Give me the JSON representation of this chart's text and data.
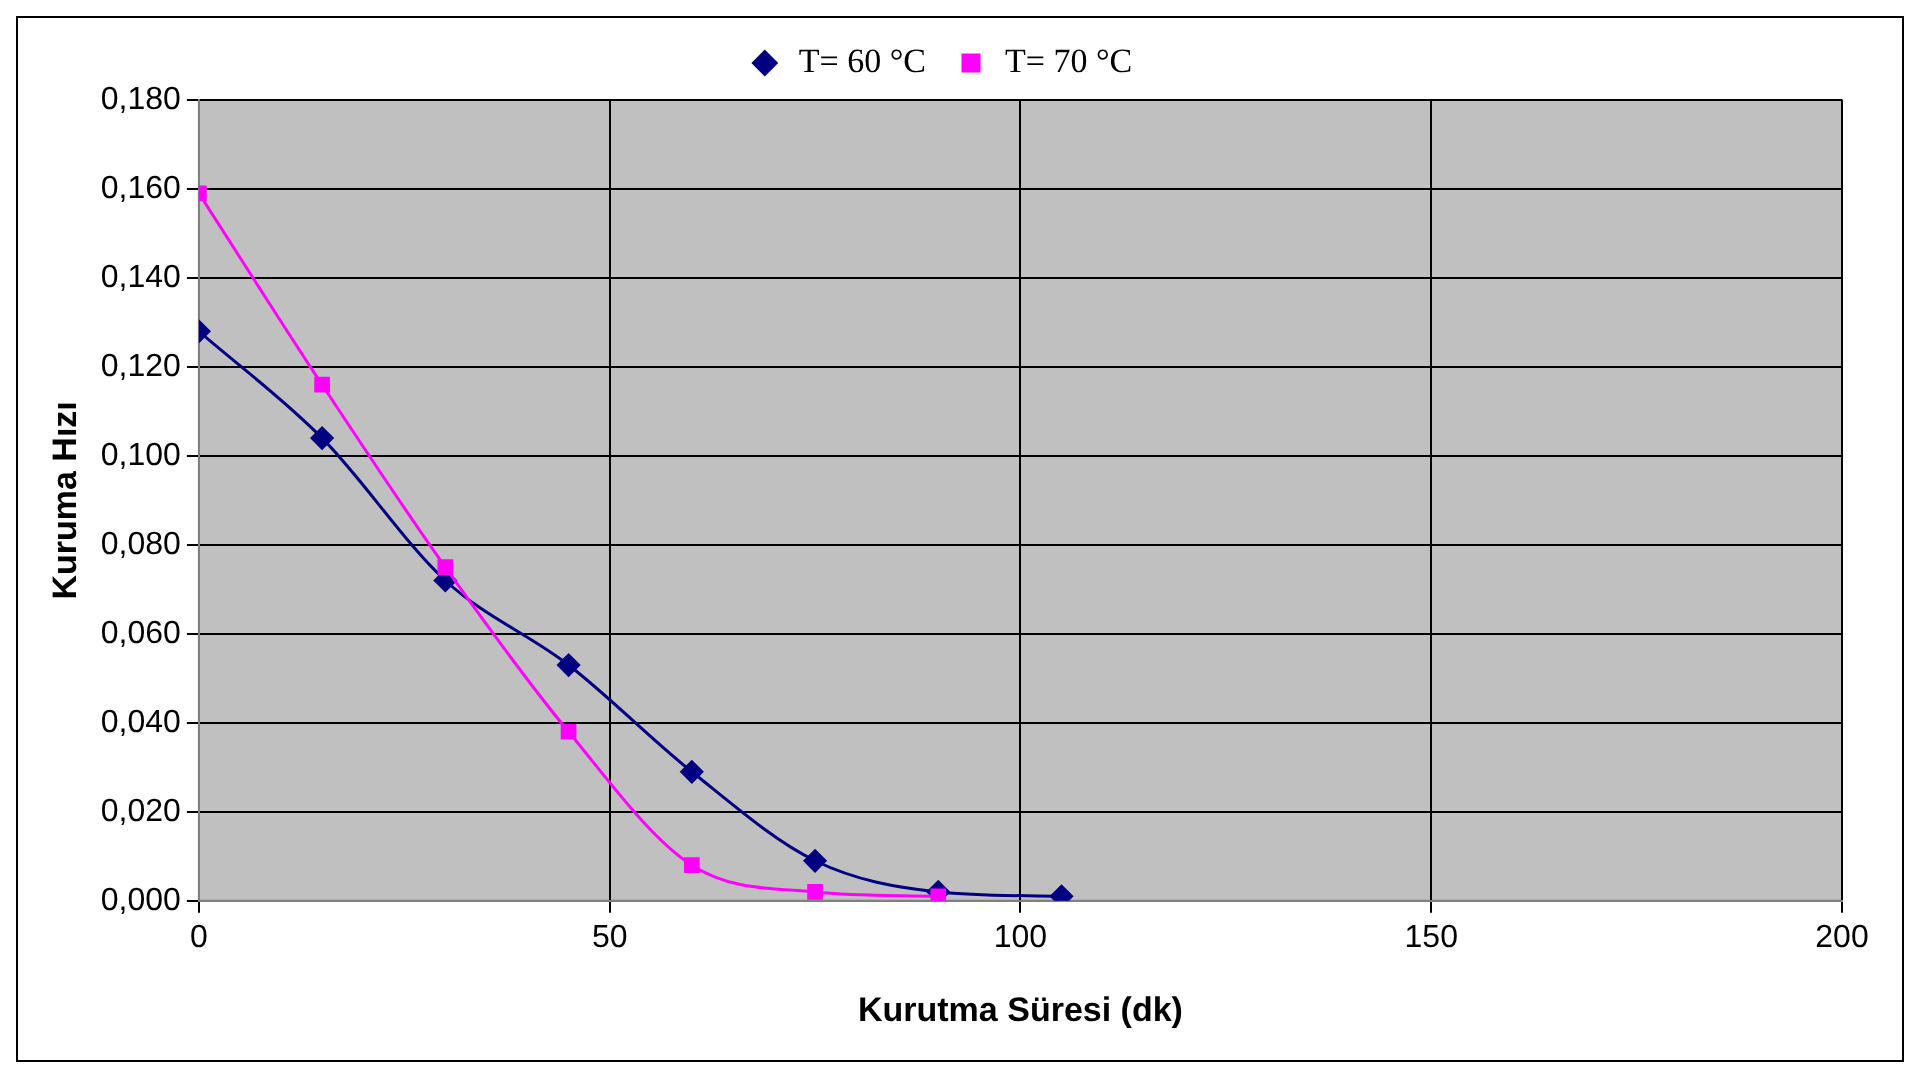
{
  "chart_data": {
    "type": "line",
    "xlabel": "Kurutma Süresi (dk)",
    "ylabel": "Kuruma Hızı",
    "series": [
      {
        "name": "T= 60 °C",
        "color": "#000080",
        "marker": "diamond",
        "x": [
          0,
          15,
          30,
          45,
          60,
          75,
          90,
          105
        ],
        "values": [
          0.128,
          0.104,
          0.072,
          0.053,
          0.029,
          0.009,
          0.002,
          0.001
        ]
      },
      {
        "name": "T= 70 °C",
        "color": "#ff00ff",
        "marker": "square",
        "x": [
          0,
          15,
          30,
          45,
          60,
          75,
          90
        ],
        "values": [
          0.159,
          0.116,
          0.075,
          0.038,
          0.008,
          0.002,
          0.001
        ]
      }
    ],
    "xlim": [
      0,
      200
    ],
    "xticks": [
      0,
      50,
      100,
      150,
      200
    ],
    "ylim": [
      0,
      0.18
    ],
    "yticks": [
      {
        "value": 0,
        "label": "0,000"
      },
      {
        "value": 0.02,
        "label": "0,020"
      },
      {
        "value": 0.04,
        "label": "0,040"
      },
      {
        "value": 0.06,
        "label": "0,060"
      },
      {
        "value": 0.08,
        "label": "0,080"
      },
      {
        "value": 0.1,
        "label": "0,100"
      },
      {
        "value": 0.12,
        "label": "0,120"
      },
      {
        "value": 0.14,
        "label": "0,140"
      },
      {
        "value": 0.16,
        "label": "0,160"
      },
      {
        "value": 0.18,
        "label": "0,180"
      }
    ],
    "grid": true,
    "legend": "top",
    "line_style": "solid"
  }
}
